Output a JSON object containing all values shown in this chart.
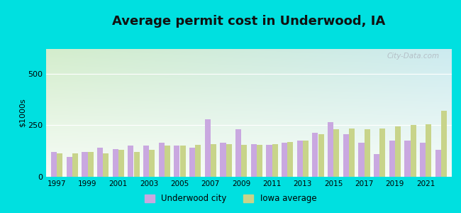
{
  "title": "Average permit cost in Underwood, IA",
  "ylabel": "$1000s",
  "years": [
    1997,
    1998,
    1999,
    2000,
    2001,
    2002,
    2003,
    2004,
    2005,
    2006,
    2007,
    2008,
    2009,
    2010,
    2011,
    2012,
    2013,
    2014,
    2015,
    2016,
    2017,
    2018,
    2019,
    2020,
    2021,
    2022
  ],
  "city_values": [
    120,
    95,
    120,
    140,
    135,
    150,
    150,
    165,
    150,
    140,
    280,
    165,
    230,
    160,
    155,
    165,
    175,
    215,
    265,
    205,
    165,
    110,
    175,
    175,
    165,
    130
  ],
  "iowa_values": [
    115,
    115,
    120,
    115,
    130,
    120,
    130,
    150,
    150,
    155,
    160,
    160,
    155,
    155,
    160,
    170,
    175,
    205,
    230,
    235,
    230,
    235,
    245,
    250,
    255,
    320
  ],
  "city_color": "#c9a8e0",
  "iowa_color": "#c8d48a",
  "background_outer": "#00e0e0",
  "ylim": [
    0,
    620
  ],
  "yticks": [
    0,
    250,
    500
  ],
  "title_fontsize": 13,
  "legend_city": "Underwood city",
  "legend_iowa": "Iowa average",
  "watermark": "City-Data.com"
}
